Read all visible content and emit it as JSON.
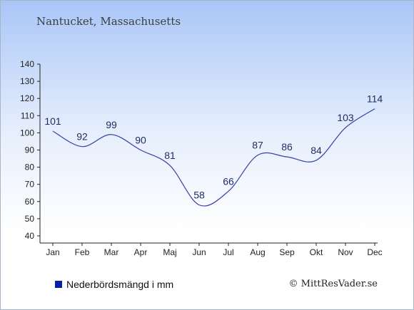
{
  "page": {
    "title": "Nantucket, Massachusetts",
    "credit": "© MittResVader.se"
  },
  "chart_data": {
    "type": "line",
    "title": "Nantucket, Massachusetts",
    "categories": [
      "Jan",
      "Feb",
      "Mar",
      "Apr",
      "Maj",
      "Jun",
      "Jul",
      "Aug",
      "Sep",
      "Okt",
      "Nov",
      "Dec"
    ],
    "series": [
      {
        "name": "Nederbördsmängd i mm",
        "values": [
          101,
          92,
          99,
          90,
          81,
          58,
          66,
          87,
          86,
          84,
          103,
          114
        ]
      }
    ],
    "ylim": [
      40,
      140
    ],
    "yticks": [
      40,
      50,
      60,
      70,
      80,
      90,
      100,
      110,
      120,
      130,
      140
    ],
    "grid": false,
    "legend": "bottom-left",
    "colors": {
      "line": "#3340a8",
      "legend_swatch": "#0a1fa8",
      "label": "#1e2e66"
    }
  }
}
